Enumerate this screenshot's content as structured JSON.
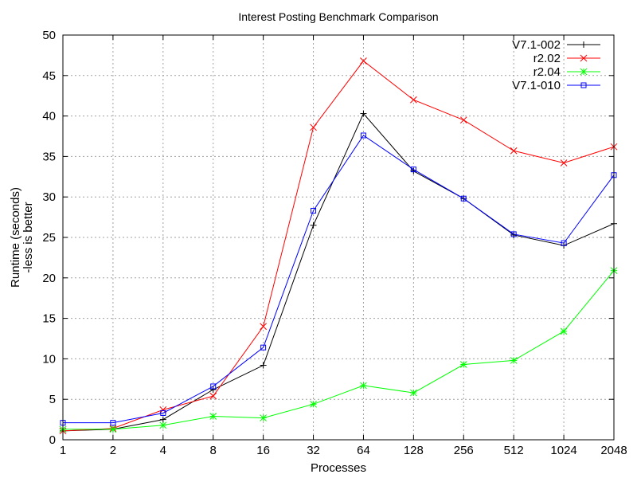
{
  "chart_data": {
    "type": "line",
    "title": "Interest Posting Benchmark Comparison",
    "xlabel": "Processes",
    "ylabel": "Runtime (seconds)",
    "ylabel2": "-less is better",
    "x_scale": "log2",
    "categories": [
      "1",
      "2",
      "4",
      "8",
      "16",
      "32",
      "64",
      "128",
      "256",
      "512",
      "1024",
      "2048"
    ],
    "ylim": [
      0,
      50
    ],
    "yticks": [
      0,
      5,
      10,
      15,
      20,
      25,
      30,
      35,
      40,
      45,
      50
    ],
    "grid": true,
    "legend_position": "top-right",
    "series": [
      {
        "name": "V7.1-002",
        "color": "#000000",
        "marker": "plus",
        "values": [
          1.1,
          1.3,
          2.5,
          6.2,
          9.2,
          26.5,
          40.3,
          33.2,
          29.8,
          25.3,
          24.0,
          26.7
        ]
      },
      {
        "name": "r2.02",
        "color": "#ff0000",
        "marker": "cross",
        "values": [
          1.1,
          1.4,
          3.7,
          5.4,
          14.0,
          38.6,
          46.8,
          42.0,
          39.5,
          35.7,
          34.2,
          36.2
        ]
      },
      {
        "name": "r2.04",
        "color": "#00ff00",
        "marker": "star",
        "values": [
          1.3,
          1.3,
          1.8,
          2.9,
          2.7,
          4.4,
          6.7,
          5.8,
          9.3,
          9.8,
          13.4,
          20.9
        ]
      },
      {
        "name": "V7.1-010",
        "color": "#0000ff",
        "marker": "square",
        "values": [
          2.1,
          2.1,
          3.3,
          6.6,
          11.4,
          28.3,
          37.6,
          33.4,
          29.8,
          25.4,
          24.3,
          32.7
        ]
      }
    ]
  }
}
